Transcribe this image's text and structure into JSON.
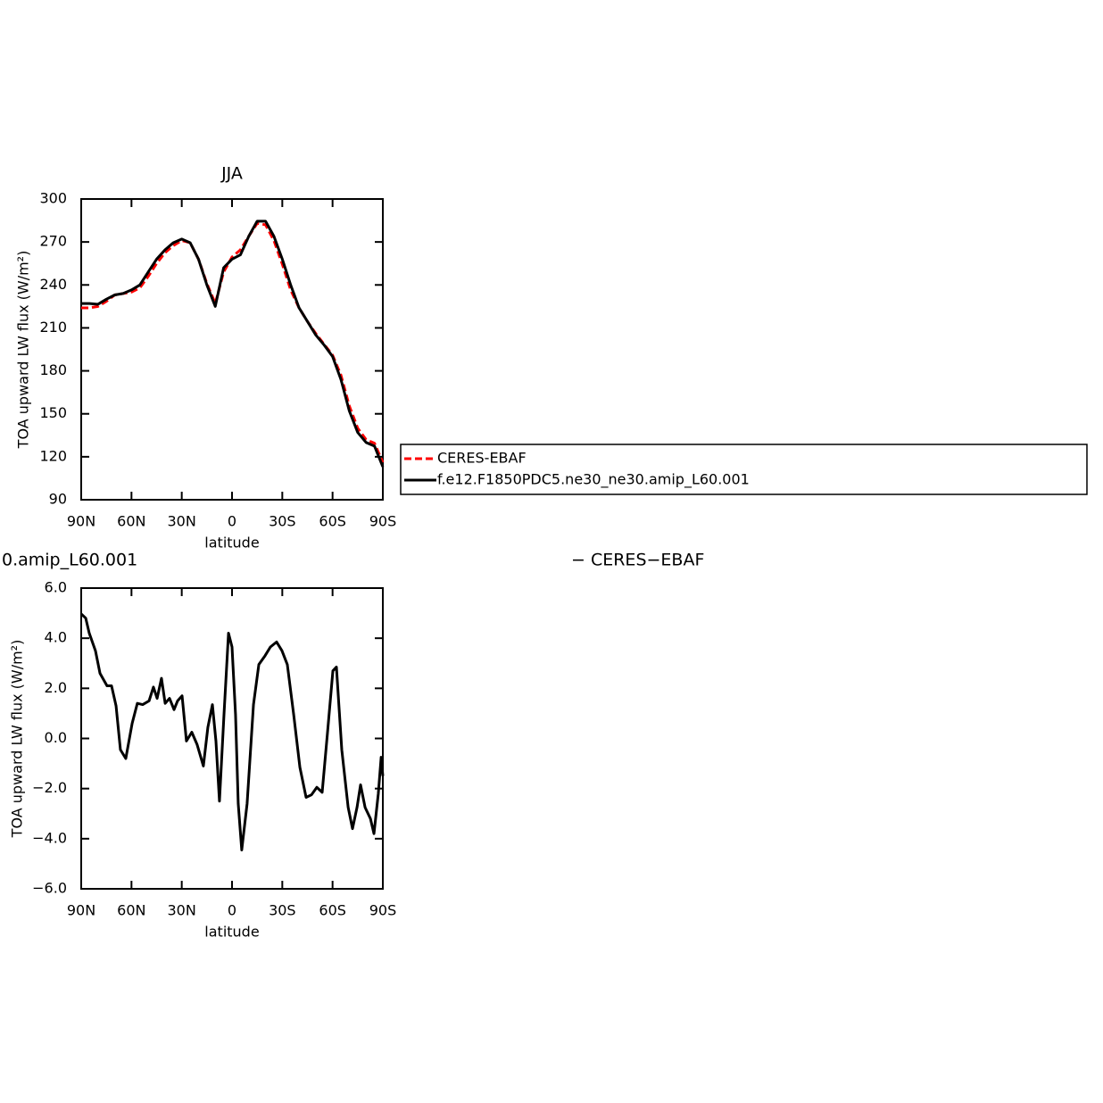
{
  "chart_data": [
    {
      "type": "line",
      "title": "JJA",
      "xlabel": "latitude",
      "ylabel": "TOA upward LW flux (W/m²)",
      "x": [
        90,
        85,
        80,
        75,
        70,
        65,
        60,
        55,
        50,
        45,
        40,
        35,
        30,
        25,
        20,
        15,
        10,
        5,
        0,
        -5,
        -10,
        -15,
        -20,
        -25,
        -30,
        -35,
        -40,
        -45,
        -50,
        -55,
        -60,
        -65,
        -70,
        -75,
        -80,
        -85,
        -90
      ],
      "series": [
        {
          "name": "CERES-EBAF",
          "color": "#ff0000",
          "style": "dashed",
          "values": [
            224,
            224,
            225,
            228.5,
            233,
            234,
            235,
            238,
            246,
            255,
            262.5,
            267.5,
            271,
            269.5,
            258,
            241,
            227,
            249,
            259.5,
            264.5,
            274,
            283,
            282,
            271,
            254.5,
            236.5,
            224,
            214.5,
            206,
            198.5,
            191,
            177,
            155.5,
            140,
            132,
            129.5,
            116
          ]
        },
        {
          "name": "f.e12.F1850PDC5.ne30_ne30.amip_L60.001",
          "color": "#000000",
          "style": "solid",
          "values": [
            227,
            227,
            226.5,
            230,
            233,
            234,
            236.5,
            240,
            249,
            258,
            264.5,
            269.5,
            272,
            269.5,
            258,
            240,
            225,
            252,
            258,
            261,
            274,
            284.5,
            284.5,
            274,
            258,
            240,
            224,
            214.5,
            205,
            198,
            190,
            174,
            152,
            137,
            130,
            127.5,
            113
          ]
        }
      ],
      "xlim": [
        90,
        -90
      ],
      "xticks": [
        {
          "value": 90,
          "label": "90N"
        },
        {
          "value": 60,
          "label": "60N"
        },
        {
          "value": 30,
          "label": "30N"
        },
        0,
        {
          "value": -30,
          "label": "30S"
        },
        {
          "value": -60,
          "label": "60S"
        },
        {
          "value": -90,
          "label": "90S"
        }
      ],
      "ylim": [
        90,
        300
      ],
      "yticks": [
        90,
        120,
        150,
        180,
        210,
        240,
        270,
        300
      ],
      "legend": "outside-right"
    },
    {
      "type": "line",
      "title_parts": [
        "0.amip_L60.001",
        "− CERES−EBAF"
      ],
      "xlabel": "latitude",
      "ylabel": "TOA upward LW flux (W/m²)",
      "x": [
        90,
        87.3,
        85.2,
        81.5,
        78.8,
        74.6,
        71.9,
        69.2,
        66.6,
        63.4,
        59.6,
        56.5,
        53.3,
        49.5,
        46.9,
        44.7,
        42.1,
        39.9,
        37.3,
        34.6,
        32.5,
        29.8,
        27.2,
        24,
        20.8,
        17.1,
        14.4,
        11.7,
        9.6,
        7.5,
        4.8,
        2.1,
        0,
        -2.1,
        -3.7,
        -5.8,
        -9,
        -12.8,
        -16,
        -19.7,
        -22.9,
        -26.6,
        -29.8,
        -33,
        -36.8,
        -40.5,
        -44.2,
        -47.4,
        -50.6,
        -53.8,
        -57,
        -60.2,
        -62.3,
        -65.5,
        -69.3,
        -71.9,
        -74.6,
        -76.7,
        -79.4,
        -82.6,
        -84.7,
        -87.3,
        -89,
        -90
      ],
      "series": [
        {
          "color": "#000000",
          "style": "solid",
          "values": [
            4.97,
            4.8,
            4.2,
            3.5,
            2.6,
            2.1,
            2.1,
            1.3,
            -0.45,
            -0.8,
            0.6,
            1.4,
            1.35,
            1.5,
            2.05,
            1.6,
            2.4,
            1.4,
            1.6,
            1.15,
            1.5,
            1.7,
            -0.1,
            0.25,
            -0.25,
            -1.1,
            0.45,
            1.35,
            -0.1,
            -2.5,
            0.95,
            4.2,
            3.65,
            0.95,
            -2.6,
            -4.45,
            -2.6,
            1.35,
            2.95,
            3.3,
            3.65,
            3.85,
            3.5,
            2.95,
            0.95,
            -1.15,
            -2.35,
            -2.25,
            -1.95,
            -2.15,
            0.25,
            2.7,
            2.85,
            -0.45,
            -2.75,
            -3.6,
            -2.75,
            -1.85,
            -2.75,
            -3.2,
            -3.8,
            -2.2,
            -0.75,
            -1.5
          ]
        }
      ],
      "xlim": [
        90,
        -90
      ],
      "xticks": [
        {
          "value": 90,
          "label": "90N"
        },
        {
          "value": 60,
          "label": "60N"
        },
        {
          "value": 30,
          "label": "30N"
        },
        0,
        {
          "value": -30,
          "label": "30S"
        },
        {
          "value": -60,
          "label": "60S"
        },
        {
          "value": -90,
          "label": "90S"
        }
      ],
      "ylim": [
        -6,
        6
      ],
      "yticks": [
        {
          "value": -6,
          "label": "−6.0"
        },
        {
          "value": -4,
          "label": "−4.0"
        },
        {
          "value": -2,
          "label": "−2.0"
        },
        {
          "value": 0,
          "label": "0.0"
        },
        {
          "value": 2,
          "label": "2.0"
        },
        {
          "value": 4,
          "label": "4.0"
        },
        {
          "value": 6,
          "label": "6.0"
        }
      ]
    }
  ]
}
